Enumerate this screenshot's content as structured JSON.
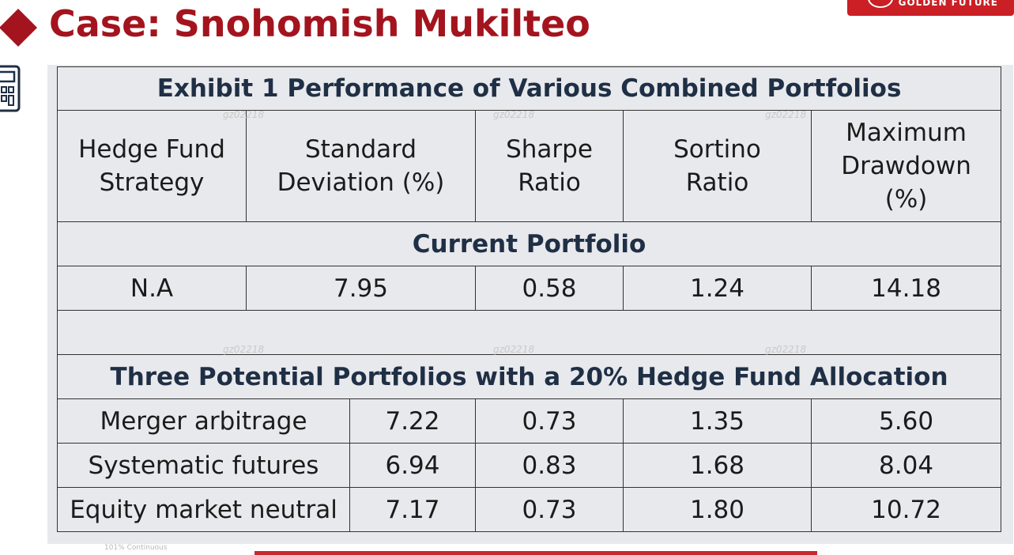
{
  "slide": {
    "title": "Case: Snohomish Mukilteo",
    "brand_text": "GOLDEN FUTURE",
    "footer_text": "101% Continuous"
  },
  "watermarks": [
    "gz02218",
    "gz02218",
    "gz02218",
    "gz02218",
    "gz02218",
    "gz02218"
  ],
  "exhibit": {
    "title": "Exhibit 1 Performance of Various Combined Portfolios",
    "headers": [
      [
        "Hedge Fund",
        "Strategy"
      ],
      [
        "Standard",
        "Deviation (%)"
      ],
      [
        "Sharpe",
        "Ratio"
      ],
      [
        "Sortino",
        "Ratio"
      ],
      [
        "Maximum",
        "Drawdown",
        "(%)"
      ]
    ],
    "current_section": "Current Portfolio",
    "current_row": [
      "N.A",
      "7.95",
      "0.58",
      "1.24",
      "14.18"
    ],
    "potential_section": "Three Potential Portfolios with a 20% Hedge Fund Allocation",
    "potential_rows": [
      [
        "Merger arbitrage",
        "7.22",
        "0.73",
        "1.35",
        "5.60"
      ],
      [
        "Systematic futures",
        "6.94",
        "0.83",
        "1.68",
        "8.04"
      ],
      [
        "Equity market neutral",
        "7.17",
        "0.73",
        "1.80",
        "10.72"
      ]
    ]
  },
  "colors": {
    "accent": "#a3141e",
    "table_bg": "#e8e9ec",
    "heading_text": "#1f2f45"
  },
  "icons": [
    "diamond-bullet-icon",
    "calculator-icon"
  ]
}
